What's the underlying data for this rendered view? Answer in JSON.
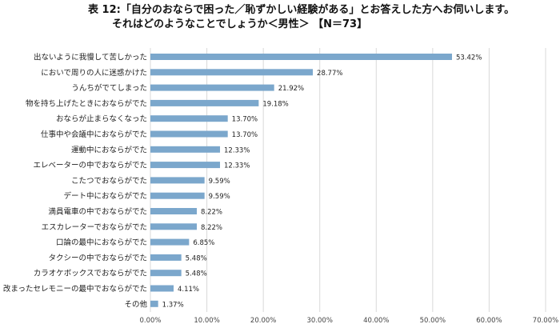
{
  "header": {
    "title_line1": "表 12:「自分のおならで困った／恥ずかしい経験がある」とお答えした方へお伺いします。",
    "title_line2": "それはどのようなことでしょうか＜男性＞ 【N＝73】"
  },
  "chart_data": {
    "type": "bar",
    "orientation": "horizontal",
    "categories": [
      "出ないように我慢して苦しかった",
      "においで周りの人に迷惑かけた",
      "うんちがでてしまった",
      "物を持ち上げたときにおならがでた",
      "おならが止まらなくなった",
      "仕事中や会議中におならがでた",
      "運動中におならがでた",
      "エレベーターの中でおならがでた",
      "こたつでおならがでた",
      "デート中におならがでた",
      "満員電車の中でおならがでた",
      "エスカレーターでおならがでた",
      "口論の最中におならがでた",
      "タクシーの中でおならがでた",
      "カラオケボックスでおならがでた",
      "改まったセレモニーの最中でおならがでた",
      "その他"
    ],
    "values": [
      53.42,
      28.77,
      21.92,
      19.18,
      13.7,
      13.7,
      12.33,
      12.33,
      9.59,
      9.59,
      8.22,
      8.22,
      6.85,
      5.48,
      5.48,
      4.11,
      1.37
    ],
    "value_labels": [
      "53.42%",
      "28.77%",
      "21.92%",
      "19.18%",
      "13.70%",
      "13.70%",
      "12.33%",
      "12.33%",
      "9.59%",
      "9.59%",
      "8.22%",
      "8.22%",
      "6.85%",
      "5.48%",
      "5.48%",
      "4.11%",
      "1.37%"
    ],
    "x_ticks": [
      "0.00%",
      "10.00%",
      "20.00%",
      "30.00%",
      "40.00%",
      "50.00%",
      "60.00%",
      "70.00%"
    ],
    "xlim": [
      0,
      70
    ],
    "grid": true,
    "bar_color": "#7ba7cc"
  }
}
